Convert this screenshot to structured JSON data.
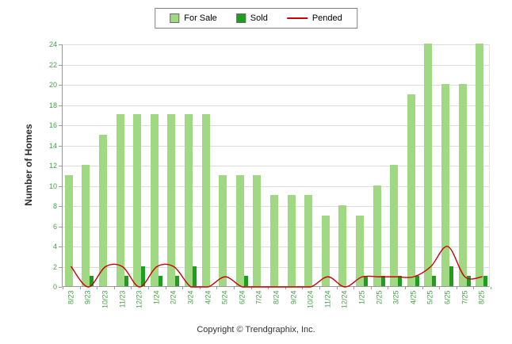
{
  "legend": {
    "for_sale": "For Sale",
    "sold": "Sold",
    "pended": "Pended"
  },
  "y_axis_title": "Number of Homes",
  "footer": "Copyright © Trendgraphix, Inc.",
  "colors": {
    "for_sale": "#A1D884",
    "sold": "#1E9E1E",
    "pended": "#CC0000",
    "axis_text": "#46A046",
    "grid": "#DCDCDC",
    "axis_line": "#9A9A9A"
  },
  "chart_data": {
    "type": "bar",
    "title": "",
    "xlabel": "",
    "ylabel": "Number of Homes",
    "ylim": [
      0,
      24
    ],
    "ytick_step": 2,
    "grid": true,
    "legend_position": "top",
    "categories": [
      "8/23",
      "9/23",
      "10/23",
      "11/23",
      "12/23",
      "1/24",
      "2/24",
      "3/24",
      "4/24",
      "5/24",
      "6/24",
      "7/24",
      "8/24",
      "9/24",
      "10/24",
      "11/24",
      "12/24",
      "1/25",
      "2/25",
      "3/25",
      "4/25",
      "5/25",
      "6/25",
      "7/25",
      "8/25"
    ],
    "series": [
      {
        "name": "For Sale",
        "type": "bar",
        "color": "#A1D884",
        "values": [
          11,
          12,
          15,
          17,
          17,
          17,
          17,
          17,
          17,
          11,
          11,
          11,
          9,
          9,
          9,
          7,
          8,
          7,
          10,
          12,
          19,
          24,
          20,
          20,
          24
        ]
      },
      {
        "name": "Sold",
        "type": "bar",
        "color": "#1E9E1E",
        "values": [
          0,
          1,
          0,
          1,
          2,
          1,
          1,
          2,
          0,
          0,
          1,
          0,
          0,
          0,
          0,
          0,
          0,
          1,
          1,
          1,
          1,
          1,
          2,
          1,
          1
        ]
      },
      {
        "name": "Pended",
        "type": "line",
        "color": "#CC0000",
        "values": [
          2,
          0,
          2,
          2,
          0,
          2,
          2,
          0,
          0,
          1,
          0,
          0,
          0,
          0,
          0,
          1,
          0,
          1,
          1,
          1,
          1,
          2,
          4,
          1,
          1
        ]
      }
    ]
  }
}
